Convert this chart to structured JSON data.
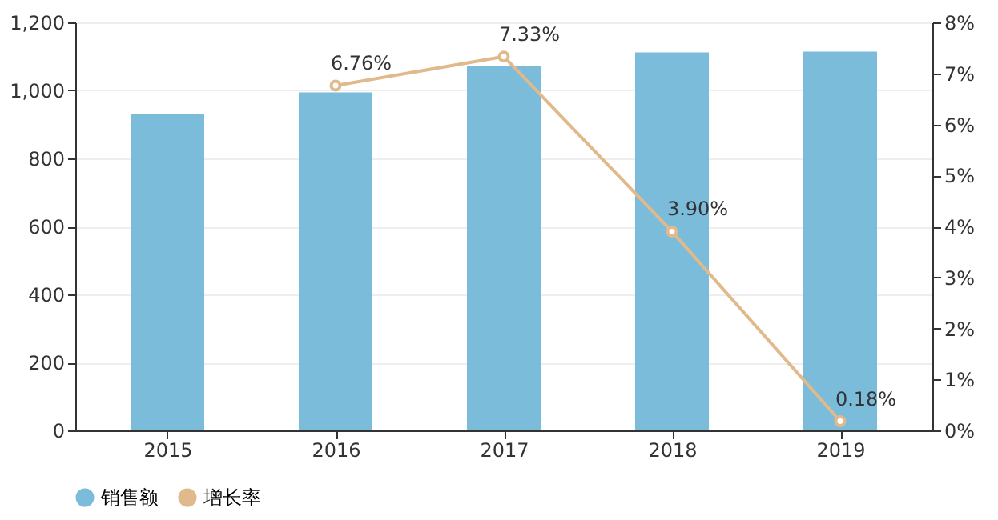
{
  "chart_data": {
    "type": "bar",
    "categories": [
      "2015",
      "2016",
      "2017",
      "2018",
      "2019"
    ],
    "series": [
      {
        "name": "销售额",
        "color": "#7bbcdb",
        "values": [
          932,
          994,
          1071,
          1112,
          1114
        ]
      },
      {
        "name": "增长率",
        "type": "line",
        "axis": "y2",
        "color": "#e0b98c",
        "values": [
          null,
          6.76,
          7.33,
          3.9,
          0.18
        ],
        "value_labels": [
          null,
          "6.76%",
          "7.33%",
          "3.90%",
          "0.18%"
        ]
      }
    ],
    "ylim": [
      0,
      1200
    ],
    "yticks": [
      {
        "value": 0,
        "label": "0"
      },
      {
        "value": 200,
        "label": "200"
      },
      {
        "value": 400,
        "label": "400"
      },
      {
        "value": 600,
        "label": "600"
      },
      {
        "value": 800,
        "label": "800"
      },
      {
        "value": 1000,
        "label": "1,000"
      },
      {
        "value": 1200,
        "label": "1,200"
      }
    ],
    "y2lim": [
      0,
      8
    ],
    "y2ticks": [
      {
        "value": 0,
        "label": "0%"
      },
      {
        "value": 1,
        "label": "1%"
      },
      {
        "value": 2,
        "label": "2%"
      },
      {
        "value": 3,
        "label": "3%"
      },
      {
        "value": 4,
        "label": "4%"
      },
      {
        "value": 5,
        "label": "5%"
      },
      {
        "value": 6,
        "label": "6%"
      },
      {
        "value": 7,
        "label": "7%"
      },
      {
        "value": 8,
        "label": "8%"
      }
    ],
    "grid": "y",
    "legend": "bottom",
    "marker": "circle",
    "line_style": "solid"
  }
}
